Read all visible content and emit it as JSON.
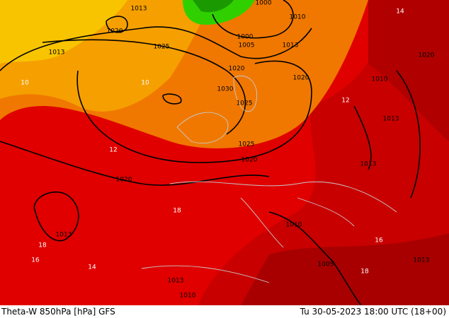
{
  "map": {
    "isobar_labels": [
      "1013",
      "1020",
      "1013",
      "1025",
      "1000",
      "1005",
      "1013",
      "1010",
      "1000",
      "1020",
      "1020",
      "1030",
      "1025",
      "1025",
      "1020",
      "1020",
      "1013",
      "1013",
      "1013",
      "1010",
      "1005",
      "1013",
      "1010",
      "1013",
      "1020",
      "1010"
    ],
    "theta_labels": [
      "10",
      "10",
      "12",
      "12",
      "14",
      "14",
      "16",
      "16",
      "18",
      "18",
      "18"
    ]
  },
  "footer": {
    "left": "Theta-W 850hPa [hPa] GFS",
    "right": "Tu 30-05-2023 18:00 UTC (18+00)"
  }
}
